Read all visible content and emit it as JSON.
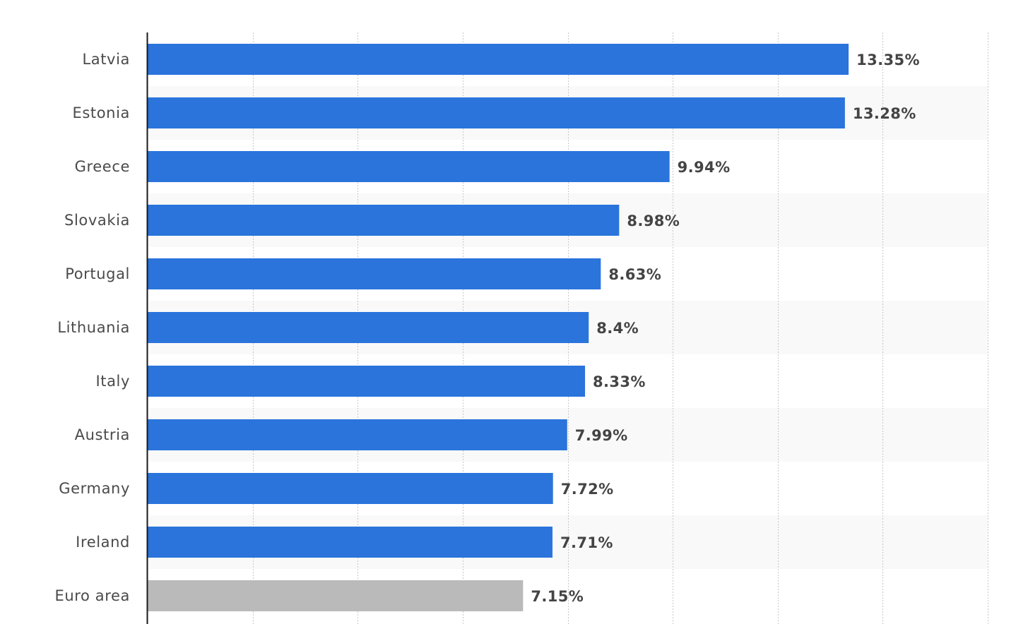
{
  "chart_data": {
    "type": "bar",
    "orientation": "horizontal",
    "categories": [
      "Latvia",
      "Estonia",
      "Greece",
      "Slovakia",
      "Portugal",
      "Lithuania",
      "Italy",
      "Austria",
      "Germany",
      "Ireland",
      "Euro area"
    ],
    "values": [
      13.35,
      13.28,
      9.94,
      8.98,
      8.63,
      8.4,
      8.33,
      7.99,
      7.72,
      7.71,
      7.15
    ],
    "value_labels": [
      "13.35%",
      "13.28%",
      "9.94%",
      "8.98%",
      "8.63%",
      "8.4%",
      "8.33%",
      "7.99%",
      "7.72%",
      "7.71%",
      "7.15%"
    ],
    "xlim": [
      0,
      16
    ],
    "grid": true,
    "title": "",
    "xlabel": "",
    "ylabel": "",
    "colors": {
      "bar": "#2a74dc",
      "highlight_bar": "#bababa",
      "highlight_category": "Euro area",
      "band": "#f9f9f9",
      "axis": "#1a1a1a",
      "grid": "#c8c8c8"
    }
  }
}
